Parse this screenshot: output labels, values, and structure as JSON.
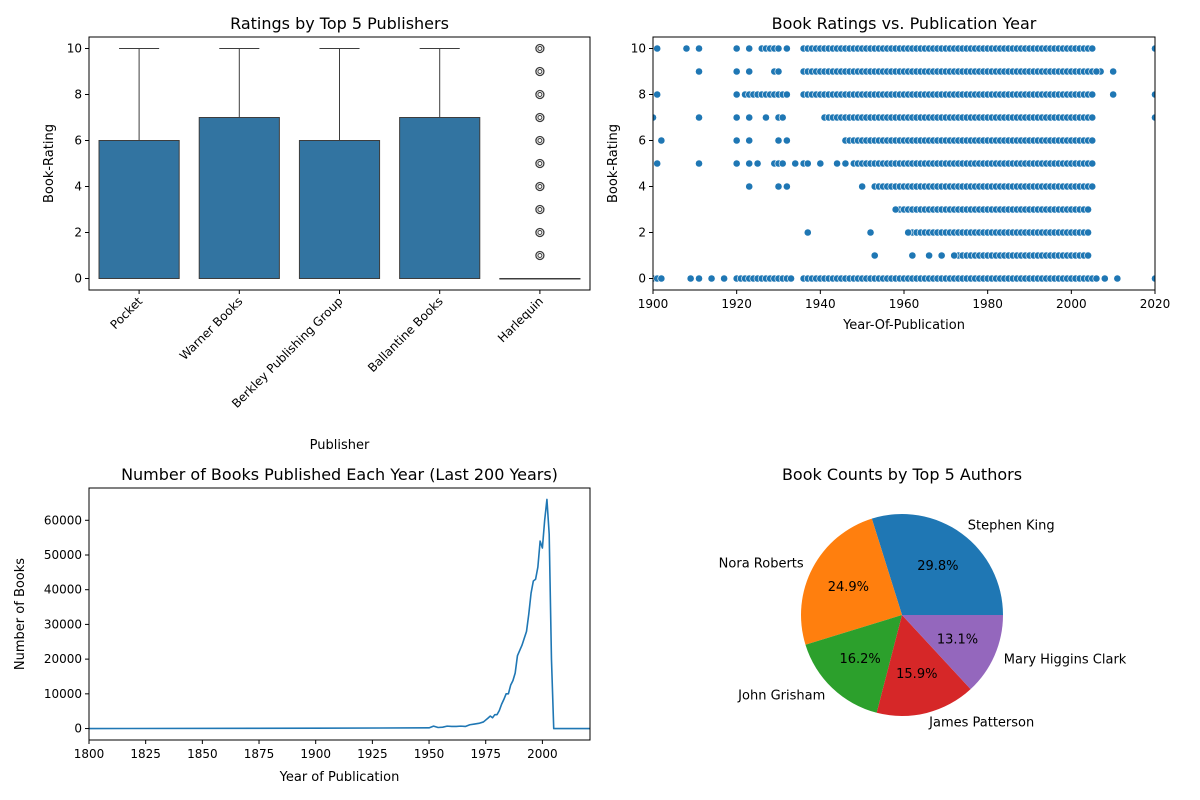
{
  "chart_data": [
    {
      "type": "box",
      "title": "Ratings by Top 5 Publishers",
      "xlabel": "Publisher",
      "ylabel": "Book-Rating",
      "ylim": [
        -0.5,
        10.5
      ],
      "yticks": [
        0,
        2,
        4,
        6,
        8,
        10
      ],
      "color": "#3274a1",
      "categories": [
        "Pocket",
        "Warner Books",
        "Berkley Publishing Group",
        "Ballantine Books",
        "Harlequin"
      ],
      "boxes": [
        {
          "min": 0,
          "q1": 0,
          "median": 0,
          "q3": 6,
          "max": 10,
          "outliers": []
        },
        {
          "min": 0,
          "q1": 0,
          "median": 0,
          "q3": 7,
          "max": 10,
          "outliers": []
        },
        {
          "min": 0,
          "q1": 0,
          "median": 0,
          "q3": 6,
          "max": 10,
          "outliers": []
        },
        {
          "min": 0,
          "q1": 0,
          "median": 0,
          "q3": 7,
          "max": 10,
          "outliers": []
        },
        {
          "min": 0,
          "q1": 0,
          "median": 0,
          "q3": 0,
          "max": 0,
          "outliers": [
            1,
            2,
            3,
            4,
            5,
            6,
            7,
            8,
            9,
            10
          ]
        }
      ]
    },
    {
      "type": "scatter",
      "title": "Book Ratings vs. Publication Year",
      "xlabel": "Year-Of-Publication",
      "ylabel": "Book-Rating",
      "xlim": [
        1900,
        2020
      ],
      "ylim": [
        -0.5,
        10.5
      ],
      "xticks": [
        1900,
        1920,
        1940,
        1960,
        1980,
        2000,
        2020
      ],
      "yticks": [
        0,
        2,
        4,
        6,
        8,
        10
      ],
      "color": "#1f77b4",
      "rows": [
        {
          "rating": 10,
          "years": [
            1901,
            1908,
            1911,
            1920,
            1923,
            1926,
            1927,
            1928,
            1929,
            1930,
            1932
          ]
        },
        {
          "rating": 9,
          "years": [
            1911,
            1920,
            1923,
            1929,
            1930
          ]
        },
        {
          "rating": 8,
          "years": [
            1901,
            1920,
            1922,
            1923,
            1924,
            1925,
            1926,
            1927,
            1928,
            1929,
            1930,
            1931,
            1932
          ]
        },
        {
          "rating": 7,
          "years": [
            1900,
            1911,
            1920,
            1923,
            1927,
            1930,
            1931
          ]
        },
        {
          "rating": 6,
          "years": [
            1902,
            1920,
            1923,
            1930,
            1932
          ]
        },
        {
          "rating": 5,
          "years": [
            1901,
            1911,
            1920,
            1923,
            1925,
            1929,
            1930,
            1931,
            1934,
            1936,
            1937,
            1940,
            1944,
            1946
          ]
        },
        {
          "rating": 4,
          "years": [
            1923,
            1930,
            1932,
            1950
          ]
        },
        {
          "rating": 3,
          "years": [
            1958
          ]
        },
        {
          "rating": 2,
          "years": [
            1937,
            1952,
            1961
          ]
        },
        {
          "rating": 1,
          "years": [
            1953,
            1962,
            1966,
            1969,
            1972
          ]
        },
        {
          "rating": 0,
          "years": [
            1900,
            1901,
            1902,
            1909,
            1911,
            1914,
            1917,
            1920,
            1921,
            1922,
            1923,
            1924,
            1925,
            1926,
            1927,
            1928,
            1929,
            1930,
            1931,
            1932,
            1933,
            2005,
            2006,
            2008,
            2011,
            2020
          ]
        },
        {
          "rating": 10,
          "years": [
            2020
          ]
        },
        {
          "rating": 9,
          "years": [
            2006,
            2010
          ]
        },
        {
          "rating": 8,
          "years": [
            2010,
            2020
          ]
        },
        {
          "rating": 7,
          "years": [
            2020
          ]
        }
      ],
      "dense_bands": [
        {
          "rating": 10,
          "from": 1936,
          "to": 2005
        },
        {
          "rating": 9,
          "from": 1936,
          "to": 2007
        },
        {
          "rating": 8,
          "from": 1936,
          "to": 2005
        },
        {
          "rating": 7,
          "from": 1941,
          "to": 2005
        },
        {
          "rating": 6,
          "from": 1946,
          "to": 2005
        },
        {
          "rating": 5,
          "from": 1948,
          "to": 2005
        },
        {
          "rating": 4,
          "from": 1953,
          "to": 2005
        },
        {
          "rating": 3,
          "from": 1959,
          "to": 2004
        },
        {
          "rating": 2,
          "from": 1961,
          "to": 2004
        },
        {
          "rating": 1,
          "from": 1973,
          "to": 2004
        },
        {
          "rating": 0,
          "from": 1936,
          "to": 2004
        }
      ]
    },
    {
      "type": "line",
      "title": "Number of Books Published Each Year (Last 200 Years)",
      "xlabel": "Year of Publication",
      "ylabel": "Number of Books",
      "xlim": [
        1800,
        2021
      ],
      "ylim": [
        -3300,
        69300
      ],
      "xticks": [
        1800,
        1825,
        1850,
        1875,
        1900,
        1925,
        1950,
        1975,
        2000
      ],
      "yticks": [
        0,
        10000,
        20000,
        30000,
        40000,
        50000,
        60000
      ],
      "color": "#1f77b4",
      "x": [
        1800,
        1900,
        1950,
        1952,
        1954,
        1956,
        1958,
        1960,
        1962,
        1964,
        1966,
        1968,
        1970,
        1972,
        1974,
        1976,
        1977,
        1978,
        1979,
        1980,
        1981,
        1982,
        1983,
        1984,
        1985,
        1986,
        1987,
        1988,
        1989,
        1990,
        1991,
        1992,
        1993,
        1994,
        1995,
        1996,
        1997,
        1998,
        1999,
        2000,
        2001,
        2002,
        2003,
        2004,
        2005,
        2021
      ],
      "y": [
        0,
        100,
        200,
        700,
        300,
        400,
        700,
        600,
        600,
        700,
        600,
        1100,
        1300,
        1500,
        1900,
        3000,
        3600,
        3100,
        4000,
        4000,
        5200,
        7000,
        8400,
        10000,
        10000,
        12500,
        13800,
        16000,
        21000,
        22500,
        24000,
        26000,
        28000,
        33000,
        39000,
        42500,
        43000,
        46500,
        54000,
        52000,
        60000,
        66000,
        56000,
        20000,
        0,
        0
      ]
    },
    {
      "type": "pie",
      "title": "Book Counts by Top 5 Authors",
      "labels": [
        "Stephen King",
        "Nora Roberts",
        "John Grisham",
        "James Patterson",
        "Mary Higgins Clark"
      ],
      "values": [
        29.8,
        24.9,
        16.2,
        15.9,
        13.1
      ],
      "percent_labels": [
        "29.8%",
        "24.9%",
        "16.2%",
        "15.9%",
        "13.1%"
      ],
      "colors": [
        "#1f77b4",
        "#ff7f0e",
        "#2ca02c",
        "#d62728",
        "#9467bd"
      ]
    }
  ]
}
